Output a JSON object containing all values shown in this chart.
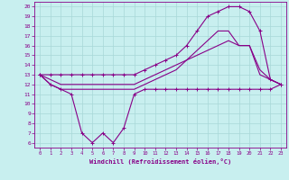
{
  "xlabel": "Windchill (Refroidissement éolien,°C)",
  "bg_color": "#c8efef",
  "grid_color": "#a8d8d8",
  "line_color": "#880088",
  "xlim": [
    -0.5,
    23.5
  ],
  "ylim": [
    5.5,
    20.5
  ],
  "xticks": [
    0,
    1,
    2,
    3,
    4,
    5,
    6,
    7,
    8,
    9,
    10,
    11,
    12,
    13,
    14,
    15,
    16,
    17,
    18,
    19,
    20,
    21,
    22,
    23
  ],
  "yticks": [
    6,
    7,
    8,
    9,
    10,
    11,
    12,
    13,
    14,
    15,
    16,
    17,
    18,
    19,
    20
  ],
  "curve_windchill_x": [
    0,
    1,
    2,
    3,
    4,
    5,
    6,
    7,
    8,
    9,
    10,
    11,
    12,
    13,
    14,
    15,
    16,
    17,
    18,
    19,
    20,
    21,
    22,
    23
  ],
  "curve_windchill_y": [
    13,
    12,
    11.5,
    11,
    7,
    6,
    7,
    6,
    7.5,
    11,
    11.5,
    11.5,
    11.5,
    11.5,
    11.5,
    11.5,
    11.5,
    11.5,
    11.5,
    11.5,
    11.5,
    11.5,
    11.5,
    12
  ],
  "curve_temp_x": [
    0,
    1,
    2,
    3,
    4,
    5,
    6,
    7,
    8,
    9,
    10,
    11,
    12,
    13,
    14,
    15,
    16,
    17,
    18,
    19,
    20,
    21,
    22,
    23
  ],
  "curve_temp_y": [
    13,
    13,
    13,
    13,
    13,
    13,
    13,
    13,
    13,
    13,
    13.5,
    14,
    14.5,
    15,
    16,
    17.5,
    19,
    19.5,
    20,
    20,
    19.5,
    17.5,
    12.5,
    12
  ],
  "curve_mid1_x": [
    0,
    1,
    2,
    3,
    4,
    5,
    6,
    7,
    8,
    9,
    10,
    11,
    12,
    13,
    14,
    15,
    16,
    17,
    18,
    19,
    20,
    21,
    22,
    23
  ],
  "curve_mid1_y": [
    13,
    12.5,
    12,
    12,
    12,
    12,
    12,
    12,
    12,
    12,
    12.5,
    13,
    13.5,
    14,
    14.5,
    15,
    15.5,
    16,
    16.5,
    16,
    16,
    13.5,
    12.5,
    12
  ],
  "curve_mid2_x": [
    0,
    1,
    2,
    3,
    4,
    5,
    6,
    7,
    8,
    9,
    10,
    11,
    12,
    13,
    14,
    15,
    16,
    17,
    18,
    19,
    20,
    21,
    22,
    23
  ],
  "curve_mid2_y": [
    13,
    12,
    11.5,
    11.5,
    11.5,
    11.5,
    11.5,
    11.5,
    11.5,
    11.5,
    12,
    12.5,
    13,
    13.5,
    14.5,
    15.5,
    16.5,
    17.5,
    17.5,
    16,
    16,
    13,
    12.5,
    12
  ]
}
